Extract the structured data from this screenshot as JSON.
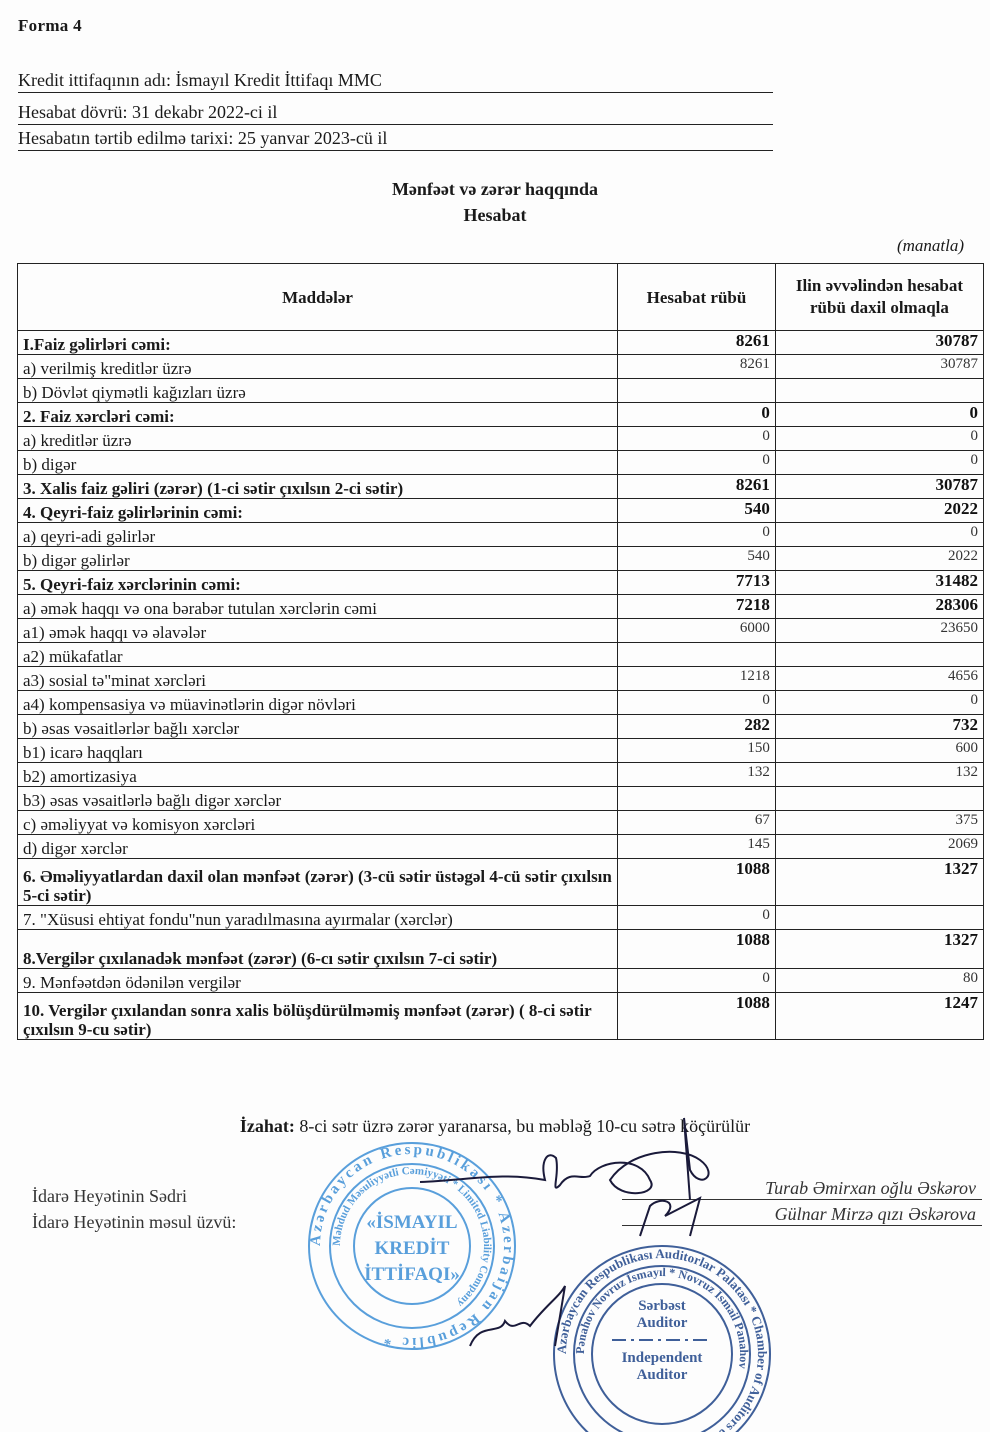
{
  "form_label": "Forma 4",
  "header": {
    "org_line": "Kredit ittifaqının adı:   İsmayıl Kredit İttifaqı MMC",
    "period_line": "Hesabat dövrü: 31 dekabr 2022-ci il",
    "date_line": "Hesabatın tərtib edilmə tarixi: 25 yanvar 2023-cü il"
  },
  "title": {
    "line1": "Mənfəət və zərər haqqında",
    "line2": "Hesabat"
  },
  "unit": "(manatla)",
  "table": {
    "columns": [
      "Maddələr",
      "Hesabat rübü",
      "Ilin əvvəlindən hesabat rübü daxil olmaqla"
    ],
    "rows": [
      {
        "label": "I.Faiz gəlirləri cəmi:",
        "quarter": "8261",
        "ytd": "30787",
        "bold": true
      },
      {
        "label": "a) verilmiş kreditlər üzrə",
        "quarter": "8261",
        "ytd": "30787"
      },
      {
        "label": "b)  Dövlət qiymətli kağızları üzrə",
        "quarter": "",
        "ytd": ""
      },
      {
        "label": "2.  Faiz xərcləri cəmi:",
        "quarter": "0",
        "ytd": "0",
        "bold": true
      },
      {
        "label": "a) kreditlər üzrə",
        "quarter": "0",
        "ytd": "0"
      },
      {
        "label": "b) digər",
        "quarter": "0",
        "ytd": "0"
      },
      {
        "label": "3.  Xalis faiz gəliri (zərər) (1-ci sətir çıxılsın 2-ci sətir)",
        "quarter": "8261",
        "ytd": "30787",
        "bold": true
      },
      {
        "label": "4. Qeyri-faiz gəlirlərinin cəmi:",
        "quarter": "540",
        "ytd": "2022",
        "bold": true
      },
      {
        "label": "a) qeyri-adi gəlirlər",
        "quarter": "0",
        "ytd": "0"
      },
      {
        "label": "b) digər gəlirlər",
        "quarter": "540",
        "ytd": "2022"
      },
      {
        "label": "5. Qeyri-faiz xərclərinin cəmi:",
        "quarter": "7713",
        "ytd": "31482",
        "bold": true
      },
      {
        "label": "a) əmək haqqı və ona bərabər tutulan xərclərin cəmi",
        "quarter": "7218",
        "ytd": "28306",
        "bold_values": true
      },
      {
        "label": "a1) əmək haqqı  və əlavələr",
        "quarter": "6000",
        "ytd": "23650"
      },
      {
        "label": "a2)  mükafatlar",
        "quarter": "",
        "ytd": ""
      },
      {
        "label": "a3) sosial tə\"minat xərcləri",
        "quarter": "1218",
        "ytd": "4656"
      },
      {
        "label": "a4) kompensasiya və müavinətlərin digər növləri",
        "quarter": "0",
        "ytd": "0"
      },
      {
        "label": "b) əsas vəsaitlərlər bağlı xərclər",
        "quarter": "282",
        "ytd": "732",
        "bold_values": true
      },
      {
        "label": "b1) icarə haqqları",
        "quarter": "150",
        "ytd": "600"
      },
      {
        "label": "b2) amortizasiya",
        "quarter": "132",
        "ytd": "132"
      },
      {
        "label": "b3) əsas vəsaitlərlə bağlı digər xərclər",
        "quarter": "",
        "ytd": ""
      },
      {
        "label": "c) əməliyyat və komisyon xərcləri",
        "quarter": "67",
        "ytd": "375"
      },
      {
        "label": "d) digər xərclər",
        "quarter": "145",
        "ytd": "2069"
      },
      {
        "label": "6. Əməliyyatlardan daxil olan  mənfəət (zərər) (3-cü sətir üstəgəl 4-cü sətir çıxılsın 5-ci sətir)",
        "quarter": "1088",
        "ytd": "1327",
        "bold": true,
        "tall": true
      },
      {
        "label": "7.  \"Xüsusi ehtiyat fondu\"nun yaradılmasına ayırmalar (xərclər)",
        "quarter": "0",
        "ytd": ""
      },
      {
        "label": "8.Vergilər çıxılanadək mənfəət (zərər) (6-cı sətir çıxılsın 7-ci sətir)",
        "quarter": "1088",
        "ytd": "1327",
        "bold": true,
        "mid": true
      },
      {
        "label": "9.  Mənfəətdən ödənilən vergilər",
        "quarter": "0",
        "ytd": "80"
      },
      {
        "label": "10. Vergilər çıxılandan sonra xalis bölüşdürülməmiş mənfəət (zərər) ( 8-ci sətir çıxılsın 9-cu sətir)",
        "quarter": "1088",
        "ytd": "1247",
        "bold": true,
        "tall": true
      }
    ]
  },
  "note": {
    "label": "İzahat:",
    "text": " 8-ci sətr üzrə zərər yaranarsa, bu məbləğ 10-cu sətrə köçürülür"
  },
  "signatures": {
    "chair_title": "İdarə Heyətinin Sədri",
    "member_title": "İdarə Heyətinin məsul üzvü:",
    "chair_name": "Turab Əmirxan oğlu Əskərov",
    "member_name": "Gülnar  Mirzə qızı Əskərova"
  },
  "stamps": {
    "company": {
      "outer": "Azərbaycan Respublikası * Azerbaijan Republic *",
      "inner": "Məhdud Məsuliyyətli Cəmiyyəti * Limited Liability Company",
      "center": [
        "«İSMAYIL",
        "KREDİT",
        "İTTİFAQI»"
      ],
      "color": "#3d8fd6"
    },
    "auditor": {
      "outer": "Azərbaycan Respublikası Auditorlar Palatası * Chamber of Auditors of Azerbaijan Rep. *",
      "inner": "Pənahov Novruz İsmayıl * Novruz Ismail Panahov",
      "center_top": [
        "Sərbəst",
        "Auditor"
      ],
      "center_bottom": [
        "Independent",
        "Auditor"
      ],
      "color": "#2b4f8f"
    }
  }
}
